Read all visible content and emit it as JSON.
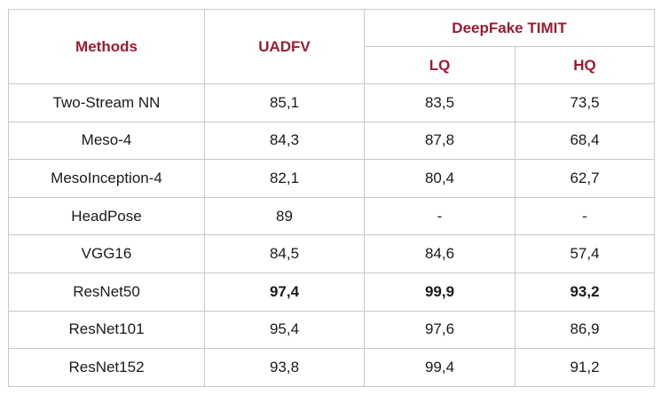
{
  "table": {
    "headers": {
      "methods": "Methods",
      "uadfv": "UADFV",
      "deepfake_timit": "DeepFake TIMIT",
      "lq": "LQ",
      "hq": "HQ"
    },
    "rows": [
      {
        "method": "Two-Stream NN",
        "uadfv": "85,1",
        "lq": "83,5",
        "hq": "73,5",
        "bold": false
      },
      {
        "method": "Meso-4",
        "uadfv": "84,3",
        "lq": "87,8",
        "hq": "68,4",
        "bold": false
      },
      {
        "method": "MesoInception-4",
        "uadfv": "82,1",
        "lq": "80,4",
        "hq": "62,7",
        "bold": false
      },
      {
        "method": "HeadPose",
        "uadfv": "89",
        "lq": "-",
        "hq": "-",
        "bold": false
      },
      {
        "method": "VGG16",
        "uadfv": "84,5",
        "lq": "84,6",
        "hq": "57,4",
        "bold": false
      },
      {
        "method": "ResNet50",
        "uadfv": "97,4",
        "lq": "99,9",
        "hq": "93,2",
        "bold": true
      },
      {
        "method": "ResNet101",
        "uadfv": "95,4",
        "lq": "97,6",
        "hq": "86,9",
        "bold": false
      },
      {
        "method": "ResNet152",
        "uadfv": "93,8",
        "lq": "99,4",
        "hq": "91,2",
        "bold": false
      }
    ],
    "colors": {
      "header_text": "#9b1c31",
      "border": "#c8c8c8",
      "body_text": "#1a1a1a"
    }
  }
}
